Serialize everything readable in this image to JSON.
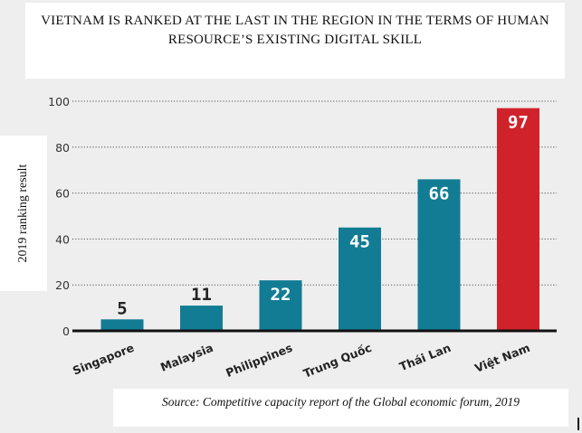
{
  "title": "VIETNAM IS RANKED AT THE LAST IN THE REGION IN THE TERMS OF HUMAN RESOURCE’S EXISTING DIGITAL SKILL",
  "source": "Source: Competitive capacity report of the Global economic forum, 2019",
  "chart_data": {
    "type": "bar",
    "title": "VIETNAM IS RANKED AT THE LAST IN THE REGION IN THE TERMS OF HUMAN RESOURCE’S EXISTING DIGITAL SKILL",
    "xlabel": "",
    "ylabel": "2019 ranking result",
    "categories": [
      "Singapore",
      "Malaysia",
      "Philippines",
      "Trung Quốc",
      "Thái Lan",
      "Việt Nam"
    ],
    "values": [
      5,
      11,
      22,
      45,
      66,
      97
    ],
    "ylim": [
      0,
      100
    ],
    "yticks": [
      0,
      20,
      40,
      60,
      80,
      100
    ],
    "grid": "horizontal dotted",
    "colors": {
      "default": "#127c94",
      "highlight": "#d0222a",
      "highlight_category": "Việt Nam",
      "tick_text": "#333333",
      "axis": "#111111"
    }
  }
}
